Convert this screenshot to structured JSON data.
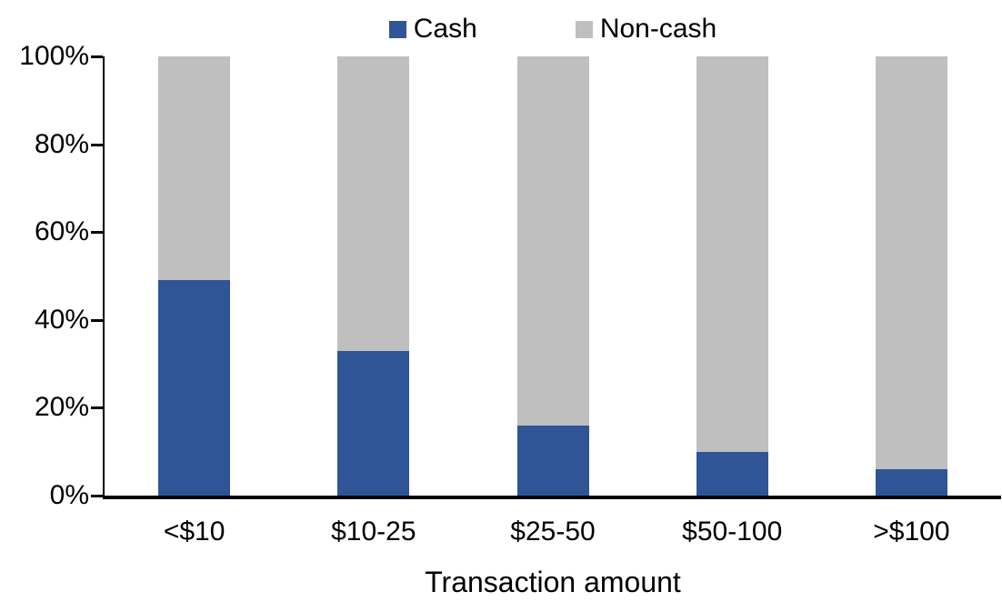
{
  "chart_data": {
    "type": "bar",
    "stacked": true,
    "percent_stacked": true,
    "title": "",
    "xlabel": "Transaction amount",
    "ylabel": "",
    "categories": [
      "<$10",
      "$10-25",
      "$25-50",
      "$50-100",
      ">$100"
    ],
    "series": [
      {
        "name": "Cash",
        "color": "#2F5597",
        "values": [
          49,
          33,
          16,
          10,
          6
        ]
      },
      {
        "name": "Non-cash",
        "color": "#BFBFBF",
        "values": [
          51,
          67,
          84,
          90,
          94
        ]
      }
    ],
    "ylim": [
      0,
      100
    ],
    "ytick_step": 20,
    "ytick_suffix": "%",
    "legend_position": "top-center",
    "grid": false,
    "axis_color": "#000000",
    "background_color": "#FFFFFF"
  }
}
